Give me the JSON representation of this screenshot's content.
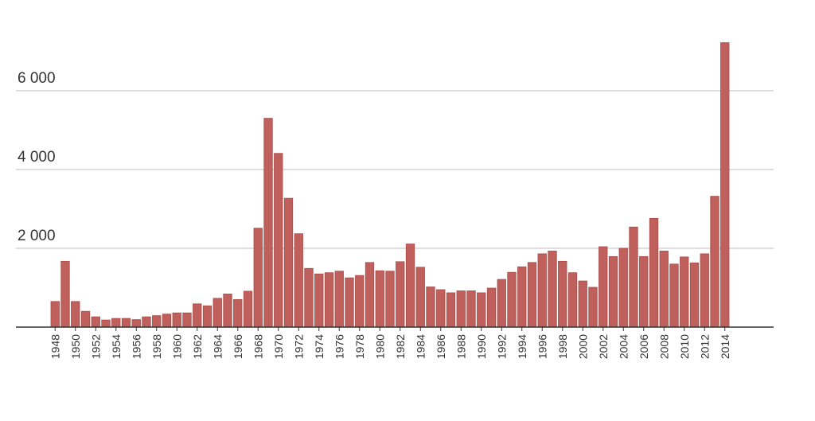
{
  "chart_data": {
    "type": "bar",
    "x": [
      1948,
      1949,
      1950,
      1951,
      1952,
      1953,
      1954,
      1955,
      1956,
      1957,
      1958,
      1959,
      1960,
      1961,
      1962,
      1963,
      1964,
      1965,
      1966,
      1967,
      1968,
      1969,
      1970,
      1971,
      1972,
      1973,
      1974,
      1975,
      1976,
      1977,
      1978,
      1979,
      1980,
      1981,
      1982,
      1983,
      1984,
      1985,
      1986,
      1987,
      1988,
      1989,
      1990,
      1991,
      1992,
      1993,
      1994,
      1995,
      1996,
      1997,
      1998,
      1999,
      2000,
      2001,
      2002,
      2003,
      2004,
      2005,
      2006,
      2007,
      2008,
      2009,
      2010,
      2011,
      2012,
      2013,
      2014
    ],
    "values": [
      650,
      1670,
      650,
      400,
      260,
      180,
      220,
      220,
      190,
      260,
      290,
      330,
      360,
      360,
      590,
      540,
      730,
      840,
      700,
      910,
      2510,
      5300,
      4410,
      3270,
      2370,
      1490,
      1350,
      1380,
      1420,
      1250,
      1310,
      1640,
      1430,
      1420,
      1660,
      2110,
      1520,
      1020,
      950,
      870,
      920,
      920,
      870,
      990,
      1210,
      1390,
      1530,
      1640,
      1860,
      1930,
      1670,
      1380,
      1170,
      1010,
      2040,
      1790,
      2000,
      2540,
      1790,
      2760,
      1930,
      1600,
      1780,
      1630,
      1860,
      3320,
      7220
    ],
    "x_tick_labels": [
      "1948",
      "1950",
      "1952",
      "1954",
      "1956",
      "1958",
      "1960",
      "1962",
      "1964",
      "1966",
      "1968",
      "1970",
      "1972",
      "1974",
      "1976",
      "1978",
      "1980",
      "1982",
      "1984",
      "1986",
      "1988",
      "1990",
      "1992",
      "1994",
      "1996",
      "1998",
      "2000",
      "2002",
      "2004",
      "2006",
      "2008",
      "2010",
      "2012",
      "2014"
    ],
    "y_ticks": [
      2000,
      4000,
      6000
    ],
    "y_tick_labels": [
      "2 000",
      "4 000",
      "6 000"
    ],
    "ylim": [
      0,
      7500
    ],
    "grid": true,
    "title": "",
    "xlabel": "",
    "ylabel": "",
    "colors": {
      "bar": "#c0605c",
      "bar_stroke": "#a84a47",
      "grid": "#d3d3d3",
      "axis": "#333333"
    }
  }
}
